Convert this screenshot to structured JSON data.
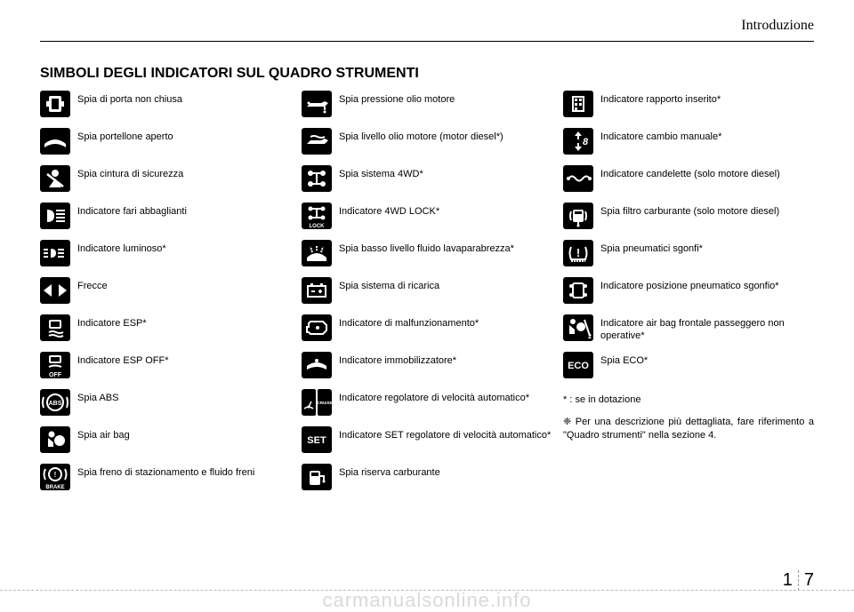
{
  "section_title": "Introduzione",
  "page_title": "SIMBOLI DEGLI INDICATORI SUL QUADRO STRUMENTI",
  "footnote": "* : se in dotazione",
  "note": "❈ Per una descrizione più dettagliata, fare riferimento a \"Quadro strumenti\" nella sezione 4.",
  "watermark": "carmanualsonline.info",
  "page_number_chapter": "1",
  "page_number_page": "7",
  "columns": [
    [
      {
        "icon": "door-ajar",
        "label": "Spia di porta non chiusa"
      },
      {
        "icon": "tailgate",
        "label": "Spia portellone aperto"
      },
      {
        "icon": "seatbelt",
        "label": "Spia cintura di sicurezza"
      },
      {
        "icon": "high-beam",
        "label": "Indicatore fari abbaglianti"
      },
      {
        "icon": "light-indicator",
        "label": "Indicatore luminoso*"
      },
      {
        "icon": "turn-signals",
        "label": "Frecce"
      },
      {
        "icon": "esp",
        "label": "Indicatore ESP*"
      },
      {
        "icon": "esp-off",
        "label": "Indicatore ESP OFF*"
      },
      {
        "icon": "abs",
        "text": "ABS",
        "label": "Spia ABS"
      },
      {
        "icon": "airbag",
        "label": "Spia air bag"
      },
      {
        "icon": "brake",
        "label": "Spia freno di stazionamento e fluido freni"
      }
    ],
    [
      {
        "icon": "oil-pressure",
        "label": "Spia pressione olio motore"
      },
      {
        "icon": "oil-level",
        "label": "Spia livello olio motore (motor diesel*)"
      },
      {
        "icon": "4wd",
        "label": "Spia sistema 4WD*"
      },
      {
        "icon": "4wd-lock",
        "label": "Indicatore 4WD LOCK*"
      },
      {
        "icon": "washer-fluid",
        "label": "Spia basso livello fluido lavaparabrezza*"
      },
      {
        "icon": "battery",
        "label": "Spia sistema di ricarica"
      },
      {
        "icon": "malfunction",
        "label": "Indicatore di malfunzionamento*"
      },
      {
        "icon": "immobilizer",
        "label": "Indicatore immobilizzatore*"
      },
      {
        "icon": "cruise",
        "double": true,
        "text2": "CRUISE",
        "label": "Indicatore regolatore di velocità automatico*"
      },
      {
        "icon": "set",
        "text": "SET",
        "label": "Indicatore SET regolatore di velocità automatico*"
      },
      {
        "icon": "fuel",
        "label": "Spia riserva carburante"
      }
    ],
    [
      {
        "icon": "gear-indicator",
        "label": "Indicatore rapporto inserito*"
      },
      {
        "icon": "manual-shift",
        "label": "Indicatore cambio manuale*"
      },
      {
        "icon": "glow-plug",
        "label": "Indicatore candelette (solo motore diesel)"
      },
      {
        "icon": "fuel-filter",
        "label": "Spia filtro carburante (solo motore diesel)"
      },
      {
        "icon": "tpms",
        "label": "Spia pneumatici sgonfi*"
      },
      {
        "icon": "tpms-position",
        "label": "Indicatore posizione pneumatico sgonfio*"
      },
      {
        "icon": "passenger-airbag-off",
        "label": "Indicatore air bag frontale passeggero non operative*"
      },
      {
        "icon": "eco",
        "text": "ECO",
        "label": "Spia ECO*"
      }
    ]
  ]
}
